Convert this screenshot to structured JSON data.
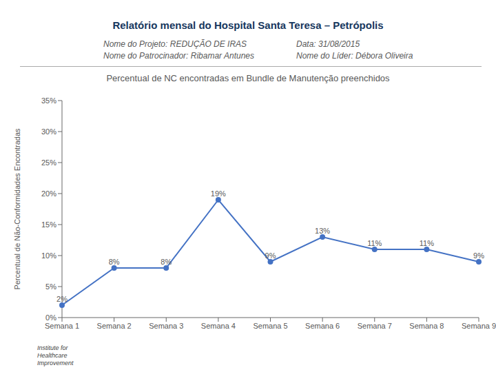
{
  "chart_data": {
    "type": "line",
    "title": "Relatório mensal do Hospital Santa Teresa – Petrópolis",
    "subtitle": "Percentual de NC encontradas em Bundle de Manutenção preenchidos",
    "annotations": [
      "Nome do Projeto:  REDUÇÃO DE IRAS",
      "Nome do Patrocinador: Ribamar Antunes",
      "Data: 31/08/2015",
      "Nome do Líder: Débora Oliveira",
      "Institute for\nHealthcare\nImprovement"
    ],
    "y_label": "Percentual de Não-Conformidades Encontradas",
    "categories": [
      "Semana 1",
      "Semana 2",
      "Semana 3",
      "Semana 4",
      "Semana 5",
      "Semana 6",
      "Semana 7",
      "Semana 8",
      "Semana 9"
    ],
    "values": [
      2,
      8,
      8,
      19,
      9,
      13,
      11,
      11,
      9
    ],
    "value_labels": [
      "2%",
      "8%",
      "8%",
      "19%",
      "9%",
      "13%",
      "11%",
      "11%",
      "9%"
    ],
    "data_labels": true,
    "color": "#4472C4",
    "marker": "circle",
    "ylim": [
      0,
      35
    ],
    "yticks": [
      {
        "value": 0,
        "label": "0%"
      },
      {
        "value": 5,
        "label": "5%"
      },
      {
        "value": 10,
        "label": "10%"
      },
      {
        "value": 15,
        "label": "15%"
      },
      {
        "value": 20,
        "label": "20%"
      },
      {
        "value": 25,
        "label": "25%"
      },
      {
        "value": 30,
        "label": "30%"
      },
      {
        "value": 35,
        "label": "35%"
      }
    ],
    "grid": false
  }
}
